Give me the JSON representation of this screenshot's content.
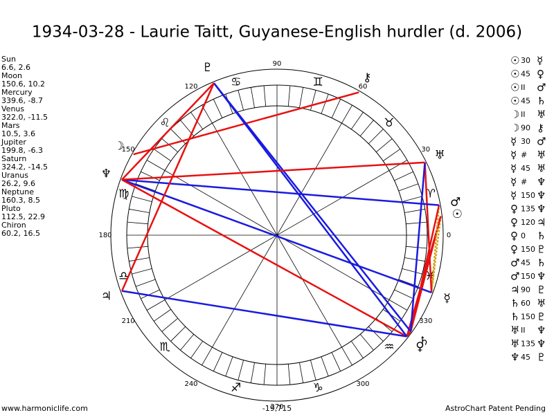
{
  "header": {
    "title": "1934-03-28 - Laurie Taitt, Guyanese-English hurdler (d. 2006)"
  },
  "planets": [
    {
      "name": "Sun",
      "position": "6.6, 2.6",
      "glyph": "☉"
    },
    {
      "name": "Moon",
      "position": "150.6, 10.2",
      "glyph": "☽"
    },
    {
      "name": "Mercury",
      "position": "339.6, -8.7",
      "glyph": "☿"
    },
    {
      "name": "Venus",
      "position": "322.0, -11.5",
      "glyph": "♀"
    },
    {
      "name": "Mars",
      "position": "10.5, 3.6",
      "glyph": "♂"
    },
    {
      "name": "Jupiter",
      "position": "199.8, -6.3",
      "glyph": "♃"
    },
    {
      "name": "Saturn",
      "position": "324.2, -14.5",
      "glyph": "♄"
    },
    {
      "name": "Uranus",
      "position": "26.2, 9.6",
      "glyph": "♅"
    },
    {
      "name": "Neptune",
      "position": "160.3, 8.5",
      "glyph": "♆"
    },
    {
      "name": "Pluto",
      "position": "112.5, 22.9",
      "glyph": "♇"
    },
    {
      "name": "Chiron",
      "position": "60.2, 16.5",
      "glyph": "⚷"
    }
  ],
  "signs": [
    "♈",
    "♉",
    "♊",
    "♋",
    "♌",
    "♍",
    "♎",
    "♏",
    "♐",
    "♑",
    "♒",
    "♓"
  ],
  "degree_labels": [
    "0",
    "30",
    "60",
    "90",
    "120",
    "150",
    "180",
    "210",
    "240",
    "270",
    "300",
    "330"
  ],
  "aspects": [
    {
      "p1": "☉",
      "aspect": "30",
      "p2": "☿",
      "color": "#d4a017"
    },
    {
      "p1": "☉",
      "aspect": "45",
      "p2": "♀",
      "color": "#e81010"
    },
    {
      "p1": "☉",
      "aspect": "II",
      "p2": "♂"
    },
    {
      "p1": "☉",
      "aspect": "45",
      "p2": "♄",
      "color": "#e81010"
    },
    {
      "p1": "☽",
      "aspect": "II",
      "p2": "♅"
    },
    {
      "p1": "☽",
      "aspect": "90",
      "p2": "⚷",
      "color": "#e81010"
    },
    {
      "p1": "☿",
      "aspect": "30",
      "p2": "♂",
      "color": "#d4a017"
    },
    {
      "p1": "☿",
      "aspect": "#",
      "p2": "♅"
    },
    {
      "p1": "☿",
      "aspect": "45",
      "p2": "♅",
      "color": "#e81010"
    },
    {
      "p1": "☿",
      "aspect": "#",
      "p2": "♆"
    },
    {
      "p1": "☿",
      "aspect": "150",
      "p2": "♆",
      "color": "#1a1ae0"
    },
    {
      "p1": "♀",
      "aspect": "135",
      "p2": "♆",
      "color": "#e81010"
    },
    {
      "p1": "♀",
      "aspect": "120",
      "p2": "♃",
      "color": "#1a1ae0"
    },
    {
      "p1": "♀",
      "aspect": "0",
      "p2": "♄",
      "color": "#e81010"
    },
    {
      "p1": "♀",
      "aspect": "150",
      "p2": "♇",
      "color": "#1a1ae0"
    },
    {
      "p1": "♂",
      "aspect": "45",
      "p2": "♄",
      "color": "#e81010"
    },
    {
      "p1": "♂",
      "aspect": "150",
      "p2": "♆",
      "color": "#1a1ae0"
    },
    {
      "p1": "♃",
      "aspect": "90",
      "p2": "♇",
      "color": "#e81010"
    },
    {
      "p1": "♄",
      "aspect": "60",
      "p2": "♅",
      "color": "#1a1ae0"
    },
    {
      "p1": "♄",
      "aspect": "150",
      "p2": "♇",
      "color": "#1a1ae0"
    },
    {
      "p1": "♅",
      "aspect": "II",
      "p2": "♆"
    },
    {
      "p1": "♅",
      "aspect": "135",
      "p2": "♆",
      "color": "#e81010"
    },
    {
      "p1": "♆",
      "aspect": "45",
      "p2": "♇",
      "color": "#e81010"
    }
  ],
  "footer": {
    "left": "www.harmoniclife.com",
    "center": "-19,715",
    "right": "AstroChart Patent Pending"
  }
}
